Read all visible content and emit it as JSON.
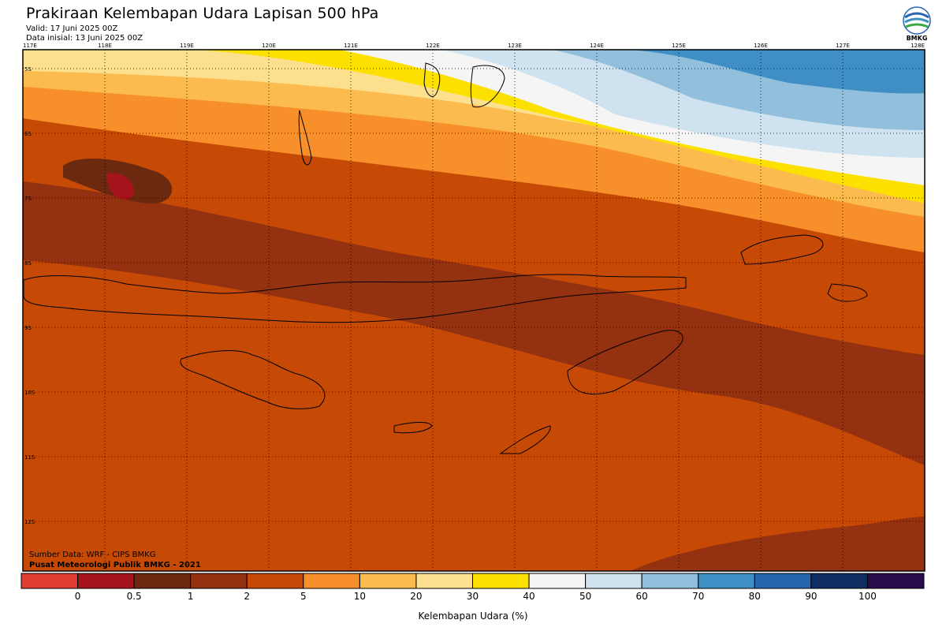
{
  "header": {
    "title": "Prakiraan Kelembapan Udara Lapisan 500 hPa",
    "valid": "Valid: 17 Juni 2025 00Z",
    "init": "Data inisial: 13 Juni 2025 00Z",
    "logo_text": "BMKG"
  },
  "map": {
    "lon_ticks": [
      "117E",
      "118E",
      "119E",
      "120E",
      "121E",
      "122E",
      "123E",
      "124E",
      "125E",
      "126E",
      "127E",
      "128E"
    ],
    "lat_ticks": [
      "5S",
      "6S",
      "7S",
      "8S",
      "9S",
      "10S",
      "11S",
      "12S"
    ],
    "source_line1": "Sumber Data: WRF - CIPS BMKG",
    "source_line2": "Pusat Meteorologi Publik BMKG - 2021"
  },
  "legend": {
    "colors": [
      "#e03c31",
      "#a4141a",
      "#6b2a10",
      "#933110",
      "#c64a06",
      "#f7902a",
      "#fbbb4e",
      "#fde08e",
      "#fce000",
      "#f5f5f5",
      "#cfe2ef",
      "#92c0dc",
      "#3f8fc4",
      "#2565ad",
      "#0d2d63",
      "#2a0b4c"
    ],
    "labels": [
      "0",
      "0.5",
      "1",
      "2",
      "5",
      "10",
      "20",
      "30",
      "40",
      "50",
      "60",
      "70",
      "80",
      "90",
      "100"
    ],
    "title": "Kelembapan Udara (%)"
  }
}
